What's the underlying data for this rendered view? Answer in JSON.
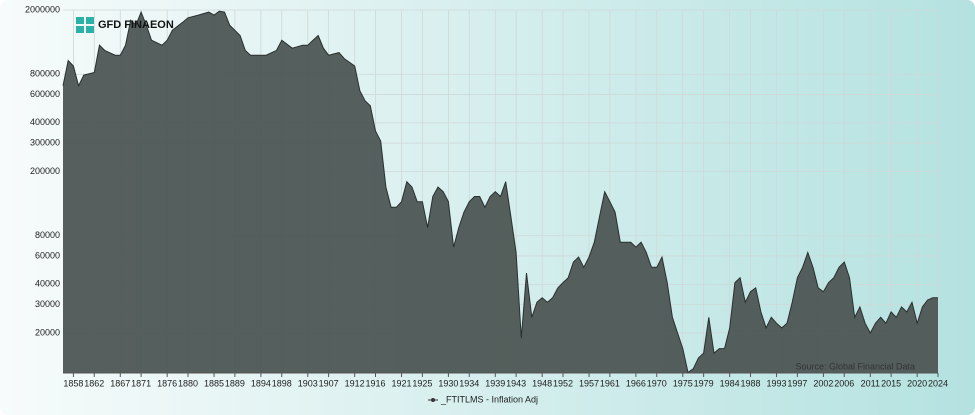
{
  "chart_data": {
    "type": "area",
    "logo": "GFD FINAEON",
    "source": "Source: Global Financial Data",
    "log_scale": true,
    "grid": true,
    "color": "#4d5654",
    "x": [
      1856,
      1857,
      1858,
      1859,
      1860,
      1862,
      1863,
      1864,
      1866,
      1867,
      1868,
      1869,
      1870,
      1871,
      1872,
      1873,
      1875,
      1876,
      1877,
      1879,
      1880,
      1882,
      1884,
      1885,
      1886,
      1887,
      1888,
      1890,
      1891,
      1892,
      1894,
      1895,
      1897,
      1898,
      1900,
      1902,
      1903,
      1904,
      1905,
      1906,
      1907,
      1909,
      1910,
      1912,
      1913,
      1914,
      1915,
      1916,
      1917,
      1918,
      1919,
      1920,
      1921,
      1922,
      1923,
      1924,
      1925,
      1926,
      1927,
      1928,
      1929,
      1930,
      1931,
      1932,
      1933,
      1934,
      1935,
      1936,
      1937,
      1938,
      1939,
      1940,
      1941,
      1942,
      1943,
      1944,
      1945,
      1946,
      1947,
      1948,
      1949,
      1950,
      1951,
      1952,
      1953,
      1954,
      1955,
      1956,
      1957,
      1958,
      1959,
      1960,
      1961,
      1962,
      1963,
      1964,
      1965,
      1966,
      1967,
      1968,
      1969,
      1970,
      1971,
      1972,
      1973,
      1974,
      1975,
      1976,
      1977,
      1978,
      1979,
      1980,
      1981,
      1982,
      1983,
      1984,
      1985,
      1986,
      1987,
      1988,
      1989,
      1990,
      1991,
      1992,
      1993,
      1994,
      1995,
      1996,
      1997,
      1998,
      1999,
      2000,
      2001,
      2002,
      2003,
      2004,
      2005,
      2006,
      2007,
      2008,
      2009,
      2010,
      2011,
      2012,
      2013,
      2014,
      2015,
      2016,
      2017,
      2018,
      2019,
      2020,
      2021,
      2022,
      2023,
      2024
    ],
    "series": [
      {
        "name": "_FTITLMS - Inflation Adj",
        "color": "#4d5654",
        "values": [
          680000,
          974000,
          900000,
          680000,
          790000,
          820000,
          1210000,
          1125000,
          1050000,
          1050000,
          1210000,
          1730000,
          1610000,
          1940000,
          1610000,
          1300000,
          1210000,
          1300000,
          1500000,
          1680000,
          1790000,
          1860000,
          1940000,
          1860000,
          1970000,
          1940000,
          1610000,
          1390000,
          1125000,
          1050000,
          1050000,
          1050000,
          1125000,
          1300000,
          1160000,
          1210000,
          1210000,
          1300000,
          1390000,
          1160000,
          1050000,
          1090000,
          1000000,
          900000,
          632000,
          548000,
          510000,
          356000,
          308000,
          160000,
          120000,
          120000,
          130000,
          173000,
          160000,
          130000,
          130000,
          90000,
          140000,
          160000,
          150000,
          130000,
          68000,
          90000,
          112000,
          130000,
          140000,
          140000,
          120000,
          140000,
          150000,
          140000,
          173000,
          105000,
          63000,
          18600,
          47000,
          25000,
          31000,
          33000,
          31000,
          33000,
          38000,
          41000,
          44000,
          55000,
          59000,
          51000,
          59000,
          73000,
          105000,
          150000,
          130000,
          112000,
          73000,
          73000,
          73000,
          68000,
          73000,
          63000,
          51000,
          51000,
          59000,
          41000,
          25000,
          20000,
          16000,
          11400,
          12000,
          14000,
          15000,
          25000,
          15000,
          16000,
          16000,
          21500,
          41000,
          44000,
          31000,
          36000,
          38000,
          27000,
          21500,
          25000,
          23000,
          21500,
          23000,
          31000,
          44000,
          51000,
          63000,
          51000,
          38000,
          36000,
          41000,
          44000,
          51000,
          55000,
          44000,
          25000,
          29000,
          23000,
          20000,
          23000,
          25000,
          23000,
          27000,
          25000,
          29000,
          27000,
          31000,
          23000,
          29000,
          32000,
          33000,
          33000
        ]
      }
    ],
    "xlim": [
      1856,
      2024
    ],
    "ylim": [
      11300,
      2000000
    ],
    "xticks": [
      1858,
      1862,
      1867,
      1871,
      1876,
      1880,
      1885,
      1889,
      1894,
      1898,
      1903,
      1907,
      1912,
      1916,
      1921,
      1925,
      1930,
      1934,
      1939,
      1943,
      1948,
      1952,
      1957,
      1961,
      1966,
      1970,
      1975,
      1979,
      1984,
      1988,
      1993,
      1997,
      2002,
      2006,
      2011,
      2015,
      2020,
      2024
    ],
    "yticks": [
      20000,
      30000,
      40000,
      60000,
      80000,
      200000,
      300000,
      400000,
      600000,
      800000,
      2000000
    ]
  }
}
